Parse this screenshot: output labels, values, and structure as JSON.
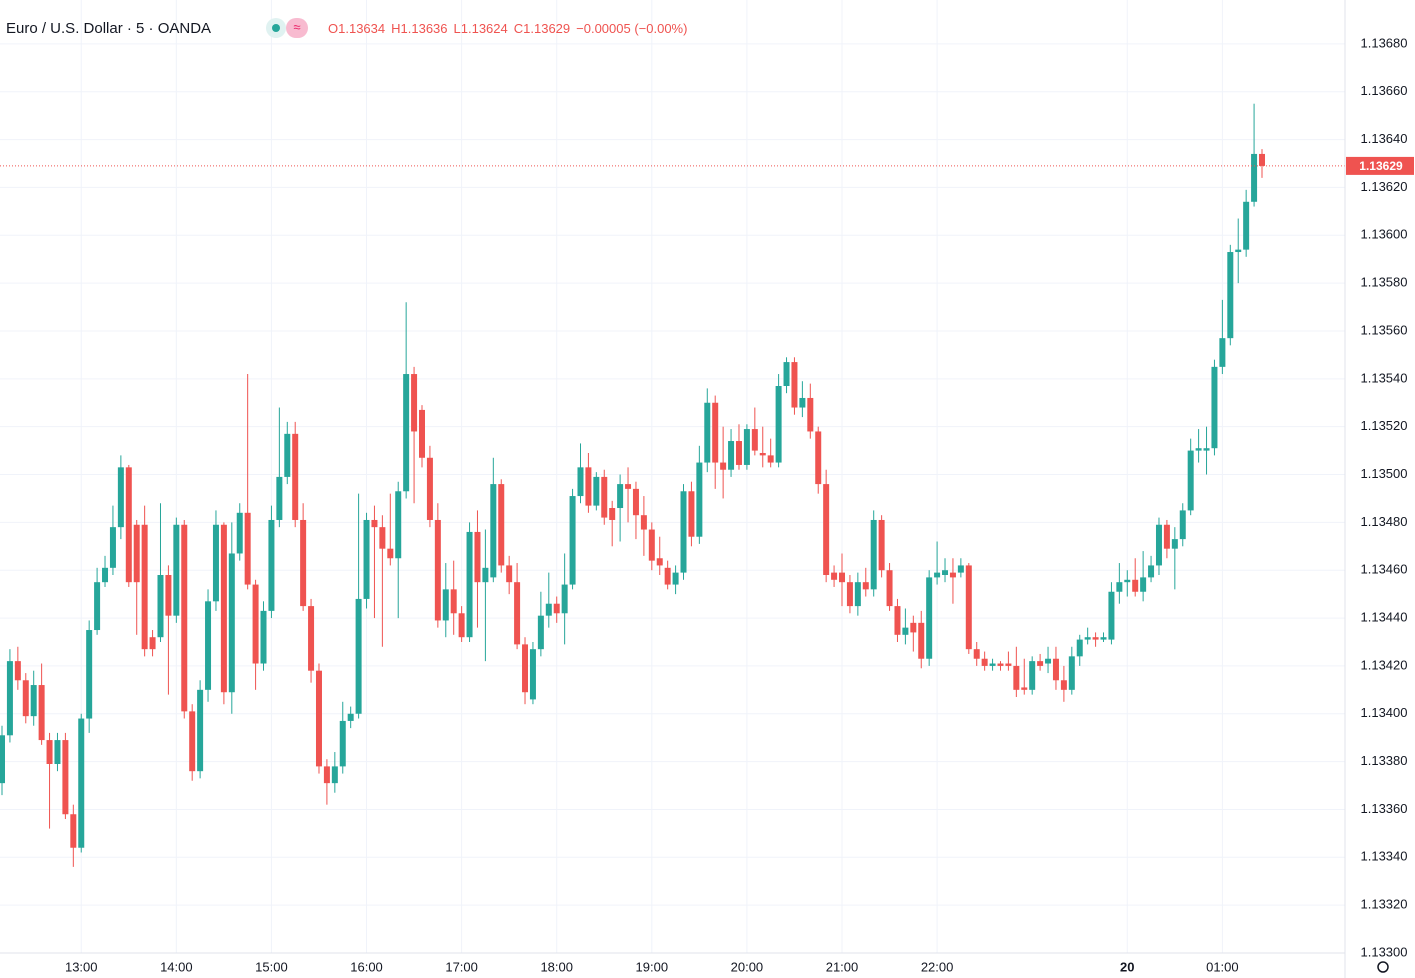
{
  "chart_data": {
    "type": "candlestick",
    "symbol": "Euro / U.S. Dollar · 5 · OANDA",
    "ohlc_labels": [
      "O",
      "H",
      "L",
      "C"
    ],
    "change": "−0.00005 (−0.00%)",
    "up_color": "#26a69a",
    "down_color": "#ef5350",
    "grid": true,
    "categories": [
      "12:10",
      "12:15",
      "12:20",
      "12:25",
      "12:30",
      "12:35",
      "12:40",
      "12:45",
      "12:50",
      "12:55",
      "13:00",
      "13:05",
      "13:10",
      "13:15",
      "13:20",
      "13:25",
      "13:30",
      "13:35",
      "13:40",
      "13:45",
      "13:50",
      "13:55",
      "14:00",
      "14:05",
      "14:10",
      "14:15",
      "14:20",
      "14:25",
      "14:30",
      "14:35",
      "14:40",
      "14:45",
      "14:50",
      "14:55",
      "15:00",
      "15:05",
      "15:10",
      "15:15",
      "15:20",
      "15:25",
      "15:30",
      "15:35",
      "15:40",
      "15:45",
      "15:50",
      "15:55",
      "16:00",
      "16:05",
      "16:10",
      "16:15",
      "16:20",
      "16:25",
      "16:30",
      "16:35",
      "16:40",
      "16:45",
      "16:50",
      "16:55",
      "17:00",
      "17:05",
      "17:10",
      "17:15",
      "17:20",
      "17:25",
      "17:30",
      "17:35",
      "17:40",
      "17:45",
      "17:50",
      "17:55",
      "18:00",
      "18:05",
      "18:10",
      "18:15",
      "18:20",
      "18:25",
      "18:30",
      "18:35",
      "18:40",
      "18:45",
      "18:50",
      "18:55",
      "19:00",
      "19:05",
      "19:10",
      "19:15",
      "19:20",
      "19:25",
      "19:30",
      "19:35",
      "19:40",
      "19:45",
      "19:50",
      "19:55",
      "20:00",
      "20:05",
      "20:10",
      "20:15",
      "20:20",
      "20:25",
      "20:30",
      "20:35",
      "20:40",
      "20:45",
      "20:50",
      "20:55",
      "21:00",
      "21:05",
      "21:10",
      "21:15",
      "21:20",
      "21:25",
      "21:30",
      "21:35",
      "21:40",
      "21:45",
      "21:50",
      "21:55",
      "22:00",
      "22:05",
      "22:10",
      "22:15",
      "22:20",
      "22:25",
      "22:30",
      "22:35",
      "22:40",
      "22:45",
      "22:50",
      "22:55",
      "23:00",
      "23:05",
      "23:10",
      "23:15",
      "23:20",
      "23:25",
      "23:30",
      "23:35",
      "23:40",
      "23:45",
      "23:50",
      "23:55",
      "00:00",
      "00:05",
      "00:10",
      "00:15",
      "00:20",
      "00:25",
      "00:30",
      "00:35",
      "00:40",
      "00:45",
      "00:50",
      "00:55",
      "01:00",
      "01:05",
      "01:10",
      "01:15",
      "01:20",
      "01:25"
    ],
    "open": [
      1.13371,
      1.13391,
      1.13422,
      1.13414,
      1.13399,
      1.13412,
      1.13389,
      1.13379,
      1.13389,
      1.13358,
      1.13344,
      1.13398,
      1.13435,
      1.13455,
      1.13461,
      1.13478,
      1.13503,
      1.13479,
      1.13479,
      1.13432,
      1.13432,
      1.13458,
      1.13441,
      1.13479,
      1.13401,
      1.13376,
      1.1341,
      1.13447,
      1.13479,
      1.13409,
      1.13467,
      1.13484,
      1.13454,
      1.13421,
      1.13443,
      1.13481,
      1.13499,
      1.13517,
      1.13481,
      1.13445,
      1.13418,
      1.13378,
      1.13371,
      1.13378,
      1.13397,
      1.134,
      1.13448,
      1.13481,
      1.13478,
      1.13469,
      1.13465,
      1.13493,
      1.13542,
      1.13527,
      1.13507,
      1.13481,
      1.13439,
      1.13452,
      1.13442,
      1.13432,
      1.13476,
      1.13455,
      1.13457,
      1.13496,
      1.13462,
      1.13455,
      1.13429,
      1.13406,
      1.13427,
      1.13441,
      1.13446,
      1.13442,
      1.13454,
      1.13491,
      1.13503,
      1.13487,
      1.13499,
      1.13486,
      1.13486,
      1.13496,
      1.13494,
      1.13483,
      1.13477,
      1.13465,
      1.13461,
      1.13454,
      1.13459,
      1.13493,
      1.13474,
      1.13505,
      1.1353,
      1.13505,
      1.13502,
      1.13514,
      1.13504,
      1.13519,
      1.13509,
      1.13508,
      1.13505,
      1.13537,
      1.13547,
      1.13528,
      1.13532,
      1.13518,
      1.13496,
      1.13459,
      1.13459,
      1.13455,
      1.13445,
      1.13455,
      1.13452,
      1.13481,
      1.1346,
      1.13445,
      1.13433,
      1.13438,
      1.13438,
      1.13423,
      1.13457,
      1.13458,
      1.13459,
      1.13459,
      1.13462,
      1.13427,
      1.13423,
      1.1342,
      1.13421,
      1.13421,
      1.1342,
      1.13411,
      1.1341,
      1.13422,
      1.13421,
      1.13423,
      1.13414,
      1.1341,
      1.13424,
      1.13431,
      1.13432,
      1.13431,
      1.13431,
      1.13451,
      1.13455,
      1.13456,
      1.13451,
      1.13457,
      1.13462,
      1.13479,
      1.13469,
      1.13473,
      1.13485,
      1.1351,
      1.1351,
      1.13511,
      1.13545,
      1.13557,
      1.13593,
      1.13594,
      1.13614,
      1.13634
    ],
    "high": [
      1.13395,
      1.13427,
      1.13428,
      1.13417,
      1.13418,
      1.13421,
      1.13392,
      1.13392,
      1.13392,
      1.13362,
      1.134,
      1.13439,
      1.13461,
      1.13466,
      1.13487,
      1.13508,
      1.13504,
      1.13481,
      1.13487,
      1.13435,
      1.13488,
      1.13462,
      1.13482,
      1.13481,
      1.13404,
      1.13414,
      1.13452,
      1.13485,
      1.1348,
      1.1348,
      1.13488,
      1.13542,
      1.13456,
      1.13447,
      1.13487,
      1.13528,
      1.13522,
      1.13522,
      1.13488,
      1.13448,
      1.13421,
      1.13381,
      1.13384,
      1.13405,
      1.13403,
      1.13492,
      1.13484,
      1.13487,
      1.13483,
      1.13492,
      1.13497,
      1.13572,
      1.13545,
      1.13529,
      1.13512,
      1.13488,
      1.13463,
      1.13464,
      1.13445,
      1.1348,
      1.13485,
      1.13477,
      1.13507,
      1.13498,
      1.13466,
      1.13463,
      1.13432,
      1.1343,
      1.13451,
      1.13459,
      1.13449,
      1.13467,
      1.13494,
      1.13513,
      1.13509,
      1.13501,
      1.13502,
      1.13489,
      1.135,
      1.13503,
      1.13497,
      1.13491,
      1.1348,
      1.13474,
      1.13464,
      1.13462,
      1.13496,
      1.13497,
      1.13512,
      1.13536,
      1.13533,
      1.1352,
      1.13519,
      1.13521,
      1.13521,
      1.13528,
      1.1352,
      1.13515,
      1.13542,
      1.13549,
      1.13549,
      1.13539,
      1.13538,
      1.1352,
      1.13502,
      1.13462,
      1.13467,
      1.13458,
      1.13459,
      1.13461,
      1.13485,
      1.13483,
      1.13463,
      1.13448,
      1.13444,
      1.13441,
      1.13443,
      1.1346,
      1.13472,
      1.13465,
      1.13465,
      1.13465,
      1.13463,
      1.1343,
      1.13426,
      1.13423,
      1.13422,
      1.13426,
      1.13428,
      1.13423,
      1.13424,
      1.13425,
      1.13428,
      1.13428,
      1.1342,
      1.13428,
      1.13433,
      1.13436,
      1.13434,
      1.13434,
      1.13455,
      1.13463,
      1.1346,
      1.13465,
      1.13468,
      1.13466,
      1.13482,
      1.13481,
      1.13478,
      1.13488,
      1.13515,
      1.13519,
      1.1352,
      1.13548,
      1.13573,
      1.13596,
      1.13607,
      1.13619,
      1.13655,
      1.13636
    ],
    "low": [
      1.13366,
      1.13388,
      1.1341,
      1.13396,
      1.13395,
      1.13387,
      1.13352,
      1.13376,
      1.13356,
      1.13336,
      1.13342,
      1.13392,
      1.13433,
      1.13453,
      1.13458,
      1.13473,
      1.13453,
      1.13433,
      1.13424,
      1.13424,
      1.1343,
      1.13408,
      1.13438,
      1.13398,
      1.13372,
      1.13373,
      1.13405,
      1.13443,
      1.13404,
      1.134,
      1.13464,
      1.13452,
      1.1341,
      1.13418,
      1.1344,
      1.13478,
      1.13496,
      1.13478,
      1.13443,
      1.13413,
      1.13375,
      1.13362,
      1.13367,
      1.13375,
      1.13394,
      1.13398,
      1.13444,
      1.1344,
      1.13428,
      1.13462,
      1.1344,
      1.1349,
      1.13488,
      1.13503,
      1.13478,
      1.13436,
      1.13432,
      1.13433,
      1.1343,
      1.1343,
      1.13436,
      1.13422,
      1.13455,
      1.13459,
      1.1345,
      1.13427,
      1.13404,
      1.13404,
      1.13424,
      1.13436,
      1.13438,
      1.13429,
      1.13452,
      1.13488,
      1.13484,
      1.13485,
      1.13479,
      1.1347,
      1.13472,
      1.1348,
      1.13473,
      1.13466,
      1.1346,
      1.13458,
      1.13452,
      1.1345,
      1.13456,
      1.1347,
      1.13471,
      1.13501,
      1.13494,
      1.1349,
      1.13499,
      1.13502,
      1.13502,
      1.13508,
      1.13503,
      1.13503,
      1.13503,
      1.13534,
      1.13525,
      1.13524,
      1.13515,
      1.13492,
      1.13455,
      1.13453,
      1.13445,
      1.13442,
      1.13441,
      1.13449,
      1.13449,
      1.13457,
      1.13443,
      1.1343,
      1.13429,
      1.13426,
      1.13419,
      1.1342,
      1.13454,
      1.13455,
      1.13446,
      1.13457,
      1.13425,
      1.1342,
      1.13418,
      1.13418,
      1.13418,
      1.13418,
      1.13407,
      1.13408,
      1.13408,
      1.13418,
      1.13417,
      1.1341,
      1.13405,
      1.13408,
      1.1342,
      1.13429,
      1.13428,
      1.1343,
      1.13429,
      1.13446,
      1.13449,
      1.13449,
      1.13447,
      1.13455,
      1.13458,
      1.13465,
      1.13452,
      1.1347,
      1.13483,
      1.13505,
      1.135,
      1.13508,
      1.13542,
      1.13554,
      1.1358,
      1.13591,
      1.13612,
      1.13624
    ],
    "close": [
      1.13391,
      1.13422,
      1.13414,
      1.13399,
      1.13412,
      1.13389,
      1.13379,
      1.13389,
      1.13358,
      1.13344,
      1.13398,
      1.13435,
      1.13455,
      1.13461,
      1.13478,
      1.13503,
      1.13455,
      1.13455,
      1.13427,
      1.13427,
      1.13458,
      1.13441,
      1.13479,
      1.13401,
      1.13376,
      1.1341,
      1.13447,
      1.13479,
      1.13409,
      1.13467,
      1.13484,
      1.13454,
      1.13421,
      1.13443,
      1.13481,
      1.13499,
      1.13517,
      1.13481,
      1.13445,
      1.13418,
      1.13378,
      1.13371,
      1.13378,
      1.13397,
      1.134,
      1.13448,
      1.13481,
      1.13478,
      1.13469,
      1.13465,
      1.13493,
      1.13542,
      1.13518,
      1.13507,
      1.13481,
      1.13439,
      1.13452,
      1.13442,
      1.13432,
      1.13476,
      1.13455,
      1.13461,
      1.13496,
      1.13462,
      1.13455,
      1.13429,
      1.13409,
      1.13427,
      1.13441,
      1.13446,
      1.13442,
      1.13454,
      1.13491,
      1.13503,
      1.13487,
      1.13499,
      1.13482,
      1.13481,
      1.13496,
      1.13494,
      1.13483,
      1.13477,
      1.13464,
      1.13462,
      1.13454,
      1.13459,
      1.13493,
      1.13474,
      1.13505,
      1.1353,
      1.13505,
      1.13502,
      1.13514,
      1.13504,
      1.13519,
      1.1351,
      1.13508,
      1.13505,
      1.13537,
      1.13547,
      1.13528,
      1.13532,
      1.13518,
      1.13496,
      1.13458,
      1.13456,
      1.13455,
      1.13445,
      1.13455,
      1.13452,
      1.13481,
      1.1346,
      1.13445,
      1.13433,
      1.13436,
      1.13434,
      1.13423,
      1.13457,
      1.13459,
      1.1346,
      1.13457,
      1.13462,
      1.13427,
      1.13423,
      1.1342,
      1.13421,
      1.1342,
      1.1342,
      1.1341,
      1.1341,
      1.13422,
      1.1342,
      1.13423,
      1.13414,
      1.1341,
      1.13424,
      1.13431,
      1.13432,
      1.13431,
      1.13432,
      1.13451,
      1.13455,
      1.13456,
      1.13451,
      1.13457,
      1.13462,
      1.13479,
      1.13469,
      1.13473,
      1.13485,
      1.1351,
      1.13511,
      1.13511,
      1.13545,
      1.13557,
      1.13593,
      1.13594,
      1.13614,
      1.13634,
      1.13629
    ],
    "ylim": [
      1.133,
      1.13695
    ],
    "yticks": [
      {
        "value": 1.133,
        "label": "1.13300"
      },
      {
        "value": 1.1332,
        "label": "1.13320"
      },
      {
        "value": 1.1334,
        "label": "1.13340"
      },
      {
        "value": 1.1336,
        "label": "1.13360"
      },
      {
        "value": 1.1338,
        "label": "1.13380"
      },
      {
        "value": 1.134,
        "label": "1.13400"
      },
      {
        "value": 1.1342,
        "label": "1.13420"
      },
      {
        "value": 1.1344,
        "label": "1.13440"
      },
      {
        "value": 1.1346,
        "label": "1.13460"
      },
      {
        "value": 1.1348,
        "label": "1.13480"
      },
      {
        "value": 1.135,
        "label": "1.13500"
      },
      {
        "value": 1.1352,
        "label": "1.13520"
      },
      {
        "value": 1.1354,
        "label": "1.13540"
      },
      {
        "value": 1.1356,
        "label": "1.13560"
      },
      {
        "value": 1.1358,
        "label": "1.13580"
      },
      {
        "value": 1.136,
        "label": "1.13600"
      },
      {
        "value": 1.1362,
        "label": "1.13620"
      },
      {
        "value": 1.1364,
        "label": "1.13640"
      },
      {
        "value": 1.1366,
        "label": "1.13660"
      },
      {
        "value": 1.1368,
        "label": "1.13680"
      }
    ],
    "xticks": [
      "13:00",
      "14:00",
      "15:00",
      "16:00",
      "17:00",
      "18:00",
      "19:00",
      "20:00",
      "21:00",
      "22:00",
      {
        "value": "00:00",
        "label": "20"
      },
      "01:00"
    ]
  }
}
